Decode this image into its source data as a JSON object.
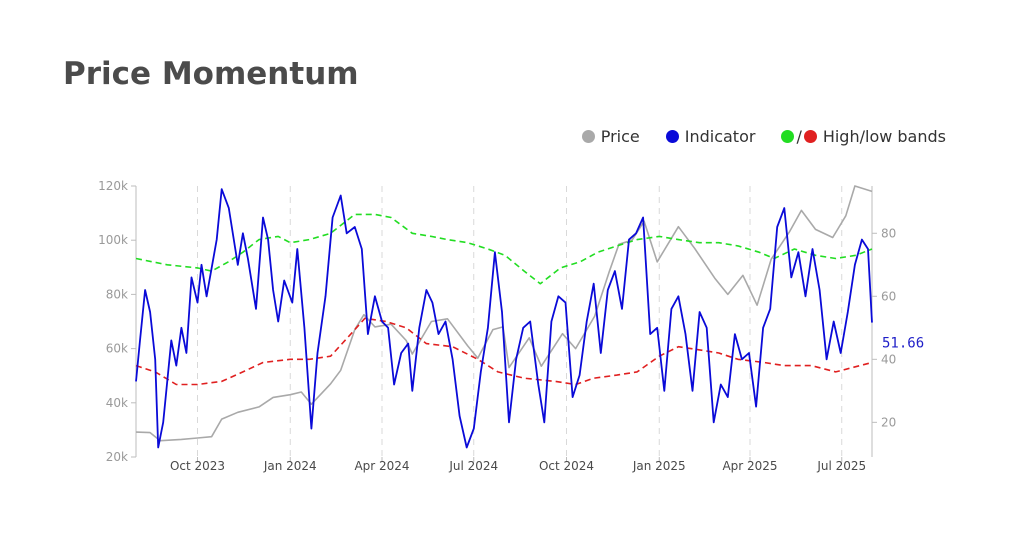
{
  "title": "Price Momentum",
  "legend": {
    "price": {
      "label": "Price",
      "color": "#a9a9a9"
    },
    "indicator": {
      "label": "Indicator",
      "color": "#0a0ad8"
    },
    "bands": {
      "label": "High/low bands",
      "separator": "/",
      "high_color": "#22dd22",
      "low_color": "#e02020"
    }
  },
  "chart_data": {
    "type": "line",
    "x_range": [
      "2023-08-01",
      "2025-07-31"
    ],
    "y_left": {
      "min": 20000,
      "max": 120000,
      "ticks": [
        20000,
        40000,
        60000,
        80000,
        100000,
        120000
      ],
      "tick_labels": [
        "20k",
        "40k",
        "60k",
        "80k",
        "100k",
        "120k"
      ]
    },
    "y_right": {
      "min": 9,
      "max": 95,
      "ticks": [
        20,
        40,
        60,
        80
      ],
      "tick_labels": [
        "20",
        "40",
        "60",
        "80"
      ]
    },
    "x_ticks": [
      {
        "date": "2023-10-01",
        "label": "Oct 2023"
      },
      {
        "date": "2024-01-01",
        "label": "Jan 2024"
      },
      {
        "date": "2024-04-01",
        "label": "Apr 2024"
      },
      {
        "date": "2024-07-01",
        "label": "Jul 2024"
      },
      {
        "date": "2024-10-01",
        "label": "Oct 2024"
      },
      {
        "date": "2025-01-01",
        "label": "Jan 2025"
      },
      {
        "date": "2025-04-01",
        "label": "Apr 2025"
      },
      {
        "date": "2025-07-01",
        "label": "Jul 2025"
      }
    ],
    "last_value_label": "51.66",
    "series": [
      {
        "name": "Price",
        "axis": "left",
        "style": "solid",
        "color": "#a9a9a9",
        "points": [
          [
            "2023-08-01",
            29200
          ],
          [
            "2023-08-15",
            29000
          ],
          [
            "2023-08-25",
            26000
          ],
          [
            "2023-09-15",
            26500
          ],
          [
            "2023-10-01",
            27000
          ],
          [
            "2023-10-15",
            27500
          ],
          [
            "2023-10-25",
            34000
          ],
          [
            "2023-11-10",
            36500
          ],
          [
            "2023-12-01",
            38500
          ],
          [
            "2023-12-15",
            42000
          ],
          [
            "2024-01-01",
            43000
          ],
          [
            "2024-01-12",
            44000
          ],
          [
            "2024-01-22",
            39500
          ],
          [
            "2024-02-10",
            47000
          ],
          [
            "2024-02-20",
            52000
          ],
          [
            "2024-03-05",
            67000
          ],
          [
            "2024-03-14",
            72500
          ],
          [
            "2024-03-25",
            68000
          ],
          [
            "2024-04-10",
            69000
          ],
          [
            "2024-04-25",
            63000
          ],
          [
            "2024-05-01",
            58000
          ],
          [
            "2024-05-20",
            70000
          ],
          [
            "2024-06-05",
            71000
          ],
          [
            "2024-06-25",
            61000
          ],
          [
            "2024-07-05",
            56500
          ],
          [
            "2024-07-20",
            67000
          ],
          [
            "2024-07-30",
            68000
          ],
          [
            "2024-08-05",
            53000
          ],
          [
            "2024-08-25",
            64000
          ],
          [
            "2024-09-06",
            53500
          ],
          [
            "2024-09-27",
            65500
          ],
          [
            "2024-10-10",
            60000
          ],
          [
            "2024-10-29",
            72000
          ],
          [
            "2024-11-12",
            88000
          ],
          [
            "2024-11-22",
            98500
          ],
          [
            "2024-12-05",
            100000
          ],
          [
            "2024-12-17",
            107000
          ],
          [
            "2024-12-30",
            92000
          ],
          [
            "2025-01-20",
            105000
          ],
          [
            "2025-02-05",
            97000
          ],
          [
            "2025-02-25",
            86000
          ],
          [
            "2025-03-10",
            80000
          ],
          [
            "2025-03-25",
            87000
          ],
          [
            "2025-04-08",
            76000
          ],
          [
            "2025-04-22",
            93000
          ],
          [
            "2025-05-10",
            103000
          ],
          [
            "2025-05-22",
            111000
          ],
          [
            "2025-06-05",
            104000
          ],
          [
            "2025-06-22",
            101000
          ],
          [
            "2025-07-05",
            109000
          ],
          [
            "2025-07-14",
            120000
          ],
          [
            "2025-07-31",
            118000
          ]
        ]
      },
      {
        "name": "Indicator",
        "axis": "right",
        "style": "solid",
        "color": "#0a0ad8",
        "points": [
          [
            "2023-08-01",
            33
          ],
          [
            "2023-08-05",
            46
          ],
          [
            "2023-08-10",
            62
          ],
          [
            "2023-08-15",
            55
          ],
          [
            "2023-08-20",
            40
          ],
          [
            "2023-08-23",
            12
          ],
          [
            "2023-08-28",
            20
          ],
          [
            "2023-09-05",
            46
          ],
          [
            "2023-09-10",
            38
          ],
          [
            "2023-09-15",
            50
          ],
          [
            "2023-09-20",
            42
          ],
          [
            "2023-09-25",
            66
          ],
          [
            "2023-10-01",
            58
          ],
          [
            "2023-10-05",
            70
          ],
          [
            "2023-10-10",
            60
          ],
          [
            "2023-10-20",
            78
          ],
          [
            "2023-10-25",
            94
          ],
          [
            "2023-11-01",
            88
          ],
          [
            "2023-11-10",
            70
          ],
          [
            "2023-11-15",
            80
          ],
          [
            "2023-11-20",
            72
          ],
          [
            "2023-11-28",
            56
          ],
          [
            "2023-12-05",
            85
          ],
          [
            "2023-12-10",
            78
          ],
          [
            "2023-12-15",
            62
          ],
          [
            "2023-12-20",
            52
          ],
          [
            "2023-12-26",
            65
          ],
          [
            "2024-01-03",
            58
          ],
          [
            "2024-01-08",
            75
          ],
          [
            "2024-01-15",
            50
          ],
          [
            "2024-01-22",
            18
          ],
          [
            "2024-01-28",
            42
          ],
          [
            "2024-02-05",
            60
          ],
          [
            "2024-02-12",
            85
          ],
          [
            "2024-02-20",
            92
          ],
          [
            "2024-02-26",
            80
          ],
          [
            "2024-03-05",
            82
          ],
          [
            "2024-03-12",
            75
          ],
          [
            "2024-03-18",
            48
          ],
          [
            "2024-03-25",
            60
          ],
          [
            "2024-04-01",
            52
          ],
          [
            "2024-04-07",
            50
          ],
          [
            "2024-04-13",
            32
          ],
          [
            "2024-04-20",
            42
          ],
          [
            "2024-04-27",
            45
          ],
          [
            "2024-05-01",
            30
          ],
          [
            "2024-05-08",
            50
          ],
          [
            "2024-05-15",
            62
          ],
          [
            "2024-05-21",
            58
          ],
          [
            "2024-05-27",
            48
          ],
          [
            "2024-06-03",
            52
          ],
          [
            "2024-06-10",
            40
          ],
          [
            "2024-06-17",
            22
          ],
          [
            "2024-06-24",
            12
          ],
          [
            "2024-07-01",
            18
          ],
          [
            "2024-07-08",
            36
          ],
          [
            "2024-07-15",
            50
          ],
          [
            "2024-07-22",
            74
          ],
          [
            "2024-07-29",
            55
          ],
          [
            "2024-08-05",
            20
          ],
          [
            "2024-08-12",
            40
          ],
          [
            "2024-08-19",
            50
          ],
          [
            "2024-08-26",
            52
          ],
          [
            "2024-09-03",
            32
          ],
          [
            "2024-09-09",
            20
          ],
          [
            "2024-09-16",
            52
          ],
          [
            "2024-09-23",
            60
          ],
          [
            "2024-09-30",
            58
          ],
          [
            "2024-10-07",
            28
          ],
          [
            "2024-10-14",
            35
          ],
          [
            "2024-10-21",
            52
          ],
          [
            "2024-10-28",
            64
          ],
          [
            "2024-11-04",
            42
          ],
          [
            "2024-11-11",
            62
          ],
          [
            "2024-11-18",
            68
          ],
          [
            "2024-11-25",
            56
          ],
          [
            "2024-12-02",
            78
          ],
          [
            "2024-12-09",
            80
          ],
          [
            "2024-12-16",
            85
          ],
          [
            "2024-12-23",
            48
          ],
          [
            "2024-12-30",
            50
          ],
          [
            "2025-01-06",
            30
          ],
          [
            "2025-01-13",
            56
          ],
          [
            "2025-01-20",
            60
          ],
          [
            "2025-01-27",
            48
          ],
          [
            "2025-02-03",
            30
          ],
          [
            "2025-02-10",
            55
          ],
          [
            "2025-02-17",
            50
          ],
          [
            "2025-02-24",
            20
          ],
          [
            "2025-03-03",
            32
          ],
          [
            "2025-03-10",
            28
          ],
          [
            "2025-03-17",
            48
          ],
          [
            "2025-03-24",
            40
          ],
          [
            "2025-03-31",
            42
          ],
          [
            "2025-04-07",
            25
          ],
          [
            "2025-04-14",
            50
          ],
          [
            "2025-04-21",
            56
          ],
          [
            "2025-04-28",
            82
          ],
          [
            "2025-05-05",
            88
          ],
          [
            "2025-05-12",
            66
          ],
          [
            "2025-05-19",
            74
          ],
          [
            "2025-05-26",
            60
          ],
          [
            "2025-06-02",
            75
          ],
          [
            "2025-06-09",
            62
          ],
          [
            "2025-06-16",
            40
          ],
          [
            "2025-06-23",
            52
          ],
          [
            "2025-06-30",
            42
          ],
          [
            "2025-07-07",
            55
          ],
          [
            "2025-07-14",
            70
          ],
          [
            "2025-07-21",
            78
          ],
          [
            "2025-07-27",
            75
          ],
          [
            "2025-07-31",
            51.66
          ]
        ]
      },
      {
        "name": "High band",
        "axis": "right",
        "style": "dashed",
        "color": "#22dd22",
        "points": [
          [
            "2023-08-01",
            72
          ],
          [
            "2023-09-01",
            70
          ],
          [
            "2023-10-01",
            69
          ],
          [
            "2023-10-15",
            68
          ],
          [
            "2023-11-01",
            71
          ],
          [
            "2023-11-15",
            74
          ],
          [
            "2023-12-01",
            78
          ],
          [
            "2023-12-20",
            79
          ],
          [
            "2024-01-01",
            77
          ],
          [
            "2024-01-20",
            78
          ],
          [
            "2024-02-10",
            80
          ],
          [
            "2024-03-05",
            86
          ],
          [
            "2024-03-25",
            86
          ],
          [
            "2024-04-10",
            85
          ],
          [
            "2024-05-01",
            80
          ],
          [
            "2024-05-20",
            79
          ],
          [
            "2024-06-05",
            78
          ],
          [
            "2024-06-25",
            77
          ],
          [
            "2024-07-15",
            75
          ],
          [
            "2024-08-01",
            73
          ],
          [
            "2024-08-20",
            68
          ],
          [
            "2024-09-05",
            64
          ],
          [
            "2024-09-25",
            69
          ],
          [
            "2024-10-15",
            71
          ],
          [
            "2024-11-01",
            74
          ],
          [
            "2024-11-20",
            76
          ],
          [
            "2024-12-10",
            78
          ],
          [
            "2025-01-01",
            79
          ],
          [
            "2025-01-20",
            78
          ],
          [
            "2025-02-10",
            77
          ],
          [
            "2025-03-01",
            77
          ],
          [
            "2025-03-20",
            76
          ],
          [
            "2025-04-10",
            74
          ],
          [
            "2025-04-25",
            72
          ],
          [
            "2025-05-15",
            75
          ],
          [
            "2025-06-05",
            73
          ],
          [
            "2025-06-25",
            72
          ],
          [
            "2025-07-15",
            73
          ],
          [
            "2025-07-31",
            75
          ]
        ]
      },
      {
        "name": "Low band",
        "axis": "right",
        "style": "dashed",
        "color": "#e02020",
        "points": [
          [
            "2023-08-01",
            38
          ],
          [
            "2023-08-20",
            36
          ],
          [
            "2023-09-10",
            32
          ],
          [
            "2023-10-01",
            32
          ],
          [
            "2023-10-25",
            33
          ],
          [
            "2023-11-15",
            36
          ],
          [
            "2023-12-05",
            39
          ],
          [
            "2024-01-01",
            40
          ],
          [
            "2024-01-20",
            40
          ],
          [
            "2024-02-10",
            41
          ],
          [
            "2024-03-01",
            48
          ],
          [
            "2024-03-15",
            53
          ],
          [
            "2024-04-05",
            52
          ],
          [
            "2024-04-25",
            50
          ],
          [
            "2024-05-15",
            45
          ],
          [
            "2024-06-10",
            44
          ],
          [
            "2024-07-05",
            40
          ],
          [
            "2024-07-25",
            36
          ],
          [
            "2024-08-20",
            34
          ],
          [
            "2024-09-20",
            33
          ],
          [
            "2024-10-10",
            32
          ],
          [
            "2024-10-28",
            34
          ],
          [
            "2024-11-20",
            35
          ],
          [
            "2024-12-10",
            36
          ],
          [
            "2025-01-01",
            41
          ],
          [
            "2025-01-20",
            44
          ],
          [
            "2025-02-10",
            43
          ],
          [
            "2025-03-01",
            42
          ],
          [
            "2025-03-20",
            40
          ],
          [
            "2025-04-15",
            39
          ],
          [
            "2025-05-05",
            38
          ],
          [
            "2025-06-01",
            38
          ],
          [
            "2025-06-25",
            36
          ],
          [
            "2025-07-31",
            39
          ]
        ]
      }
    ]
  }
}
